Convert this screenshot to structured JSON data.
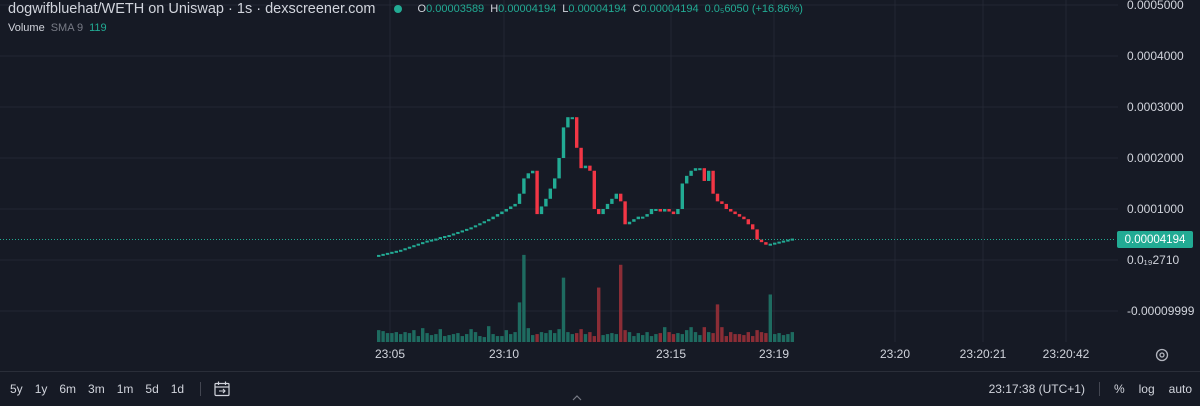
{
  "header": {
    "title": "dogwifbluehat/WETH on Uniswap · 1s · dexscreener.com",
    "ohlc": [
      {
        "k": "O",
        "v": "0.00003589"
      },
      {
        "k": "H",
        "v": "0.00004194"
      },
      {
        "k": "L",
        "v": "0.00004194"
      },
      {
        "k": "C",
        "v": "0.00004194"
      }
    ],
    "change": "0.0₅6050 (+16.86%)"
  },
  "volume_legend": {
    "label": "Volume",
    "sma": "SMA 9",
    "value": "119"
  },
  "last_price": "0.00004194",
  "colors": {
    "up": "#22ab94",
    "down": "#f23645",
    "up_vol": "#1e6b60",
    "down_vol": "#8b2d36",
    "bg": "#161a25",
    "grid": "#232733"
  },
  "bottom": {
    "ranges": [
      "5y",
      "1y",
      "6m",
      "3m",
      "1m",
      "5d",
      "1d"
    ],
    "clock": "23:17:38 (UTC+1)",
    "percent": "%",
    "log": "log",
    "auto": "auto"
  },
  "chart_data": {
    "type": "candlestick",
    "y_ticks": [
      "0.0005000",
      "0.0004000",
      "0.0003000",
      "0.0002000",
      "0.0001000",
      "0.0₁₉2710",
      "-0.00009999"
    ],
    "y_tick_values": [
      0.0005,
      0.0004,
      0.0003,
      0.0002,
      0.0001,
      2.71e-20,
      -9.999e-05
    ],
    "x_ticks": [
      "23:05",
      "23:10",
      "23:15",
      "23:19",
      "23:20",
      "23:20:21",
      "23:20:42"
    ],
    "ylim": [
      -0.00013,
      0.0005
    ],
    "close_series": [
      1e-05,
      1.2e-05,
      1.4e-05,
      1.6e-05,
      1.8e-05,
      2e-05,
      2.3e-05,
      2.6e-05,
      2.9e-05,
      3.2e-05,
      3.5e-05,
      3.8e-05,
      4e-05,
      4.2e-05,
      4.5e-05,
      4.7e-05,
      4.9e-05,
      5.2e-05,
      5.5e-05,
      5.8e-05,
      6.1e-05,
      6.4e-05,
      6.8e-05,
      7.2e-05,
      7.6e-05,
      8e-05,
      8.5e-05,
      9e-05,
      9.5e-05,
      0.0001,
      0.000105,
      0.00011,
      0.00013,
      0.00016,
      0.00017,
      0.000175,
      9e-05,
      0.000105,
      0.00012,
      0.00014,
      0.00016,
      0.0002,
      0.00026,
      0.00028,
      0.00028,
      0.00022,
      0.00018,
      0.000185,
      0.000175,
      0.0001,
      9e-05,
      0.0001,
      0.00011,
      0.00012,
      0.00013,
      0.000115,
      7e-05,
      7.5e-05,
      8e-05,
      8.5e-05,
      8.5e-05,
      9e-05,
      0.0001,
      0.0001,
      9.5e-05,
      0.0001,
      9.5e-05,
      9e-05,
      0.0001,
      0.00015,
      0.000165,
      0.000175,
      0.00018,
      0.00018,
      0.000155,
      0.000175,
      0.00013,
      0.000115,
      0.00011,
      0.0001,
      9.5e-05,
      9e-05,
      8.5e-05,
      8e-05,
      7e-05,
      6e-05,
      4e-05,
      3.5e-05,
      3e-05,
      3.2e-05,
      3.4e-05,
      3.6e-05,
      3.8e-05,
      4e-05,
      4.2e-05
    ],
    "volume": [
      12,
      11,
      9,
      9,
      10,
      8,
      10,
      9,
      12,
      6,
      14,
      9,
      7,
      8,
      13,
      6,
      7,
      8,
      9,
      6,
      8,
      13,
      10,
      6,
      5,
      16,
      8,
      6,
      6,
      12,
      8,
      10,
      40,
      88,
      14,
      7,
      8,
      10,
      9,
      12,
      9,
      13,
      65,
      10,
      8,
      9,
      13,
      8,
      10,
      6,
      55,
      7,
      8,
      9,
      8,
      78,
      12,
      10,
      6,
      9,
      7,
      10,
      6,
      8,
      9,
      15,
      10,
      8,
      9,
      8,
      12,
      15,
      10,
      7,
      15,
      10,
      9,
      38,
      15,
      6,
      10,
      8,
      8,
      7,
      10,
      6,
      12,
      10,
      9,
      48,
      8,
      9,
      7,
      8,
      10
    ]
  }
}
